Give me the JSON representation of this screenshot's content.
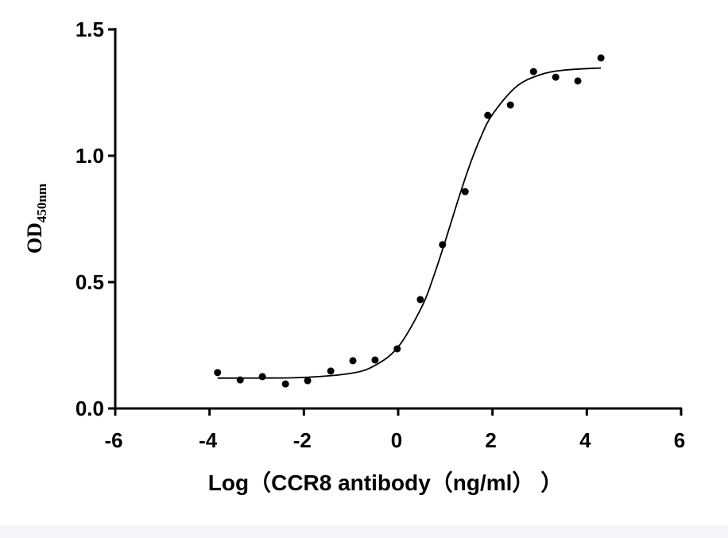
{
  "chart_data": {
    "type": "scatter",
    "x_label": "Log（CCR8 antibody（ng/ml） ）",
    "y_label": "OD",
    "y_label_sub": "450nm",
    "xlim": [
      -6,
      6
    ],
    "xticks": [
      -6,
      -4,
      -2,
      0,
      2,
      4,
      6
    ],
    "ylim": [
      0,
      1.5
    ],
    "yticks": [
      {
        "value": 0,
        "label": "0.0"
      },
      {
        "value": 0.5,
        "label": "0.5"
      },
      {
        "value": 1,
        "label": "1.0"
      },
      {
        "value": 1.5,
        "label": "1.5"
      }
    ],
    "series": [
      {
        "name": "OD",
        "color": "#000000",
        "x": [
          -3.83,
          -3.35,
          -2.88,
          -2.39,
          -1.92,
          -1.43,
          -0.96,
          -0.49,
          -0.02,
          0.47,
          0.94,
          1.42,
          1.9,
          2.38,
          2.87,
          3.34,
          3.81,
          4.3
        ],
        "values": [
          0.142,
          0.113,
          0.126,
          0.097,
          0.11,
          0.148,
          0.189,
          0.192,
          0.236,
          0.431,
          0.648,
          0.858,
          1.16,
          1.201,
          1.333,
          1.311,
          1.296,
          1.387
        ]
      },
      {
        "name": "fit",
        "color": "#000000",
        "line": true,
        "x": [
          -3.83,
          -3,
          -2,
          -1,
          -0.5,
          0,
          0.5,
          0.75,
          1,
          1.25,
          1.5,
          1.75,
          2,
          2.5,
          3,
          3.5,
          4.3
        ],
        "values": [
          0.1201,
          0.1204,
          0.1227,
          0.1391,
          0.1696,
          0.2436,
          0.4018,
          0.5216,
          0.663,
          0.813,
          0.9539,
          1.0726,
          1.1637,
          1.2727,
          1.3199,
          1.3384,
          1.3476
        ]
      }
    ]
  }
}
